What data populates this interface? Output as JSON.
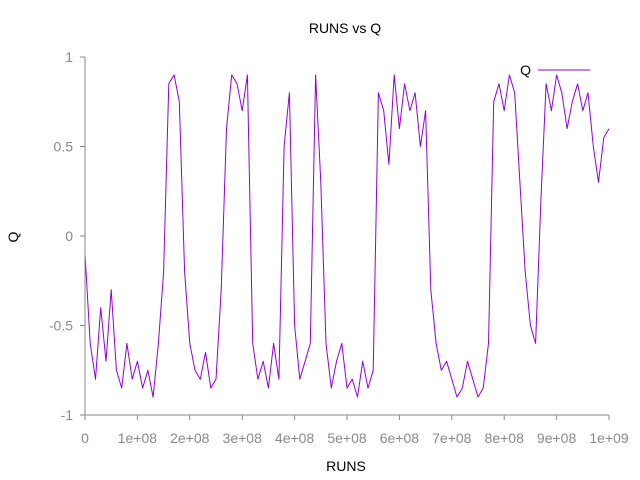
{
  "chart_data": {
    "type": "line",
    "title": "RUNS vs Q",
    "xlabel": "RUNS",
    "ylabel": "Q",
    "xlim": [
      0,
      1000000000
    ],
    "ylim": [
      -1,
      1
    ],
    "grid": false,
    "legend_position": "top-right",
    "x_tick_values": [
      0,
      100000000,
      200000000,
      300000000,
      400000000,
      500000000,
      600000000,
      700000000,
      800000000,
      900000000,
      1000000000
    ],
    "x_tick_labels": [
      "0",
      "1e+08",
      "2e+08",
      "3e+08",
      "4e+08",
      "5e+08",
      "6e+08",
      "7e+08",
      "8e+08",
      "9e+08",
      "1e+09"
    ],
    "y_tick_values": [
      -1,
      -0.5,
      0,
      0.5,
      1
    ],
    "y_tick_labels": [
      "-1",
      "-0.5",
      "0",
      "0.5",
      "1"
    ],
    "series": [
      {
        "name": "Q",
        "color": "#9400d3",
        "x": [
          0,
          10000000,
          20000000,
          30000000,
          40000000,
          50000000,
          60000000,
          70000000,
          80000000,
          90000000,
          100000000,
          110000000,
          120000000,
          130000000,
          140000000,
          150000000,
          160000000,
          170000000,
          180000000,
          190000000,
          200000000,
          210000000,
          220000000,
          230000000,
          240000000,
          250000000,
          260000000,
          270000000,
          280000000,
          290000000,
          300000000,
          310000000,
          320000000,
          330000000,
          340000000,
          350000000,
          360000000,
          370000000,
          380000000,
          390000000,
          400000000,
          410000000,
          420000000,
          430000000,
          440000000,
          450000000,
          460000000,
          470000000,
          480000000,
          490000000,
          500000000,
          510000000,
          520000000,
          530000000,
          540000000,
          550000000,
          560000000,
          570000000,
          580000000,
          590000000,
          600000000,
          610000000,
          620000000,
          630000000,
          640000000,
          650000000,
          660000000,
          670000000,
          680000000,
          690000000,
          700000000,
          710000000,
          720000000,
          730000000,
          740000000,
          750000000,
          760000000,
          770000000,
          780000000,
          790000000,
          800000000,
          810000000,
          820000000,
          830000000,
          840000000,
          850000000,
          860000000,
          870000000,
          880000000,
          890000000,
          900000000,
          910000000,
          920000000,
          930000000,
          940000000,
          950000000,
          960000000,
          970000000,
          980000000,
          990000000,
          1000000000
        ],
        "y": [
          -0.1,
          -0.6,
          -0.8,
          -0.4,
          -0.7,
          -0.3,
          -0.75,
          -0.85,
          -0.6,
          -0.8,
          -0.7,
          -0.85,
          -0.75,
          -0.9,
          -0.6,
          -0.2,
          0.85,
          0.9,
          0.75,
          -0.2,
          -0.6,
          -0.75,
          -0.8,
          -0.65,
          -0.85,
          -0.8,
          -0.3,
          0.6,
          0.9,
          0.85,
          0.7,
          0.9,
          -0.6,
          -0.8,
          -0.7,
          -0.85,
          -0.6,
          -0.8,
          0.5,
          0.8,
          -0.5,
          -0.8,
          -0.7,
          -0.6,
          0.9,
          0.3,
          -0.6,
          -0.85,
          -0.7,
          -0.6,
          -0.85,
          -0.8,
          -0.9,
          -0.7,
          -0.85,
          -0.75,
          0.8,
          0.7,
          0.4,
          0.9,
          0.6,
          0.85,
          0.7,
          0.8,
          0.5,
          0.7,
          -0.3,
          -0.6,
          -0.75,
          -0.7,
          -0.8,
          -0.9,
          -0.85,
          -0.7,
          -0.8,
          -0.9,
          -0.85,
          -0.6,
          0.75,
          0.85,
          0.7,
          0.9,
          0.8,
          0.3,
          -0.2,
          -0.5,
          -0.6,
          0.2,
          0.85,
          0.7,
          0.9,
          0.8,
          0.6,
          0.75,
          0.85,
          0.7,
          0.8,
          0.5,
          0.3,
          0.55,
          0.6
        ]
      }
    ]
  }
}
